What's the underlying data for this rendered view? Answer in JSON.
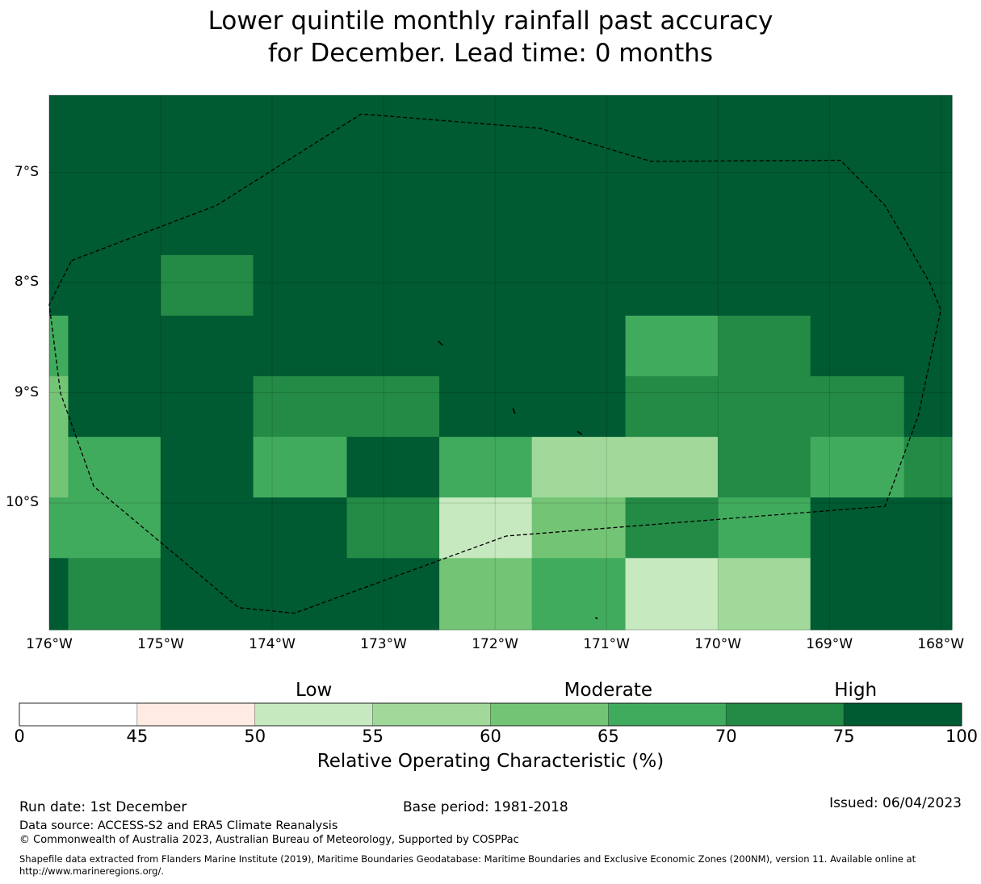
{
  "title_line1": "Lower quintile monthly rainfall past accuracy",
  "title_line2": "for December. Lead time: 0 months",
  "map": {
    "lon_range": [
      -176,
      -167.9
    ],
    "lat_range": [
      -11.15,
      -6.3
    ],
    "lat_ticks": [
      {
        "value": -7,
        "label": "7°S"
      },
      {
        "value": -8,
        "label": "8°S"
      },
      {
        "value": -9,
        "label": "9°S"
      },
      {
        "value": -10,
        "label": "10°S"
      }
    ],
    "lon_ticks": [
      {
        "value": -176,
        "label": "176°W"
      },
      {
        "value": -175,
        "label": "175°W"
      },
      {
        "value": -174,
        "label": "174°W"
      },
      {
        "value": -173,
        "label": "173°W"
      },
      {
        "value": -172,
        "label": "172°W"
      },
      {
        "value": -171,
        "label": "171°W"
      },
      {
        "value": -170,
        "label": "170°W"
      },
      {
        "value": -169,
        "label": "169°W"
      },
      {
        "value": -168,
        "label": "168°W"
      }
    ],
    "grid_lon_edges": [
      -176,
      -175.83,
      -175,
      -174.17,
      -173.33,
      -172.5,
      -171.67,
      -170.83,
      -170,
      -169.17,
      -168.33,
      -167.9
    ],
    "grid_lat_edges": [
      -6.3,
      -8.3,
      -8.85,
      -9.4,
      -9.95,
      -10.5,
      -11.05
    ],
    "cell_values": [
      [
        80,
        80,
        80,
        80,
        80,
        80,
        80,
        80,
        80,
        80,
        80
      ],
      [
        67,
        80,
        80,
        80,
        80,
        80,
        80,
        67,
        72,
        80,
        80
      ],
      [
        62,
        80,
        80,
        72,
        72,
        80,
        80,
        72,
        72,
        72,
        80
      ],
      [
        62,
        67,
        80,
        67,
        80,
        67,
        57,
        57,
        72,
        67,
        72
      ],
      [
        67,
        67,
        80,
        80,
        72,
        52,
        62,
        72,
        67,
        80,
        80
      ],
      [
        80,
        72,
        80,
        80,
        80,
        62,
        67,
        52,
        57,
        80,
        80
      ]
    ],
    "extra_cells": [
      {
        "lon": [
          -175,
          -174.17
        ],
        "lat": [
          -7.75,
          -8.3
        ],
        "value": 72
      }
    ],
    "eez_boundary": [
      [
        -175.8,
        -7.8
      ],
      [
        -174.5,
        -7.3
      ],
      [
        -173.2,
        -6.47
      ],
      [
        -171.6,
        -6.6
      ],
      [
        -170.6,
        -6.9
      ],
      [
        -168.9,
        -6.89
      ],
      [
        -168.5,
        -7.3
      ],
      [
        -168.1,
        -8.0
      ],
      [
        -168.0,
        -8.25
      ],
      [
        -168.2,
        -9.2
      ],
      [
        -168.5,
        -10.03
      ],
      [
        -171.9,
        -10.3
      ],
      [
        -173.8,
        -11.0
      ],
      [
        -174.3,
        -10.95
      ],
      [
        -175.6,
        -9.85
      ],
      [
        -175.9,
        -9.0
      ],
      [
        -176.0,
        -8.2
      ],
      [
        -175.8,
        -7.8
      ]
    ],
    "islands": [
      [
        [
          -172.51,
          -8.53
        ],
        [
          -172.47,
          -8.57
        ]
      ],
      [
        [
          -171.84,
          -9.14
        ],
        [
          -171.82,
          -9.19
        ]
      ],
      [
        [
          -171.26,
          -9.35
        ],
        [
          -171.22,
          -9.38
        ]
      ],
      [
        [
          -171.1,
          -11.04
        ],
        [
          -171.08,
          -11.05
        ]
      ]
    ]
  },
  "colorbar": {
    "category_labels": [
      {
        "label": "Low",
        "value": 52.5
      },
      {
        "label": "Moderate",
        "value": 65
      },
      {
        "label": "High",
        "value": 77.5
      }
    ],
    "bins": [
      {
        "from": 0,
        "to": 45,
        "color": "#ffffff"
      },
      {
        "from": 45,
        "to": 50,
        "color": "#ffebe1"
      },
      {
        "from": 50,
        "to": 55,
        "color": "#c7e9c0"
      },
      {
        "from": 55,
        "to": 60,
        "color": "#a1d99b"
      },
      {
        "from": 60,
        "to": 65,
        "color": "#74c476"
      },
      {
        "from": 65,
        "to": 70,
        "color": "#41ab5d"
      },
      {
        "from": 70,
        "to": 75,
        "color": "#238b45"
      },
      {
        "from": 75,
        "to": 100,
        "color": "#005a32"
      }
    ],
    "tick_labels": [
      "0",
      "45",
      "50",
      "55",
      "60",
      "65",
      "70",
      "75",
      "100"
    ],
    "title": "Relative Operating Characteristic (%)"
  },
  "footer": {
    "run_date": "Run date: 1st December",
    "base_period": "Base period: 1981-2018",
    "issued": "Issued: 06/04/2023",
    "data_source": "Data source: ACCESS-S2 and ERA5 Climate Reanalysis",
    "copyright": "© Commonwealth of Australia 2023, Australian Bureau of Meteorology, Supported by COSPPac",
    "shapefile_line1": "Shapefile data extracted from Flanders Marine Institute (2019), Maritime Boundaries Geodatabase: Maritime Boundaries and Exclusive Economic Zones (200NM), version 11. Available online at",
    "shapefile_line2": "http://www.marineregions.org/."
  }
}
